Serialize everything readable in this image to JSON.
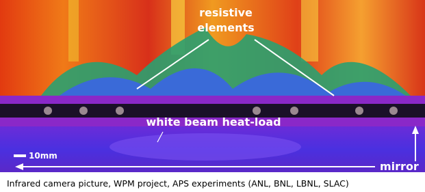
{
  "image": {
    "annotations": {
      "resistive_elements": [
        "resistive",
        "elements"
      ],
      "heat_load": "white beam heat-load",
      "scale": "10mm",
      "mirror": "mirror"
    }
  },
  "caption": "Infrared camera picture, WPM project, APS experiments (ANL, BNL, LBNL, SLAC)"
}
